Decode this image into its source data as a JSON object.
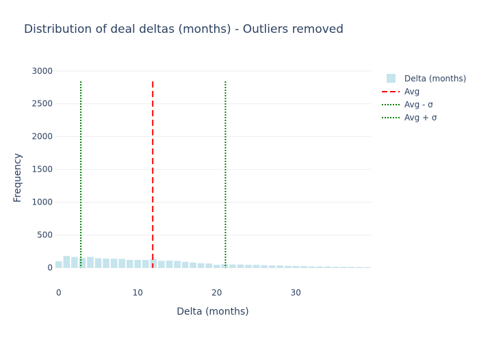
{
  "chart_data": {
    "type": "bar",
    "title": "Distribution of deal deltas (months) - Outliers removed",
    "xlabel": "Delta (months)",
    "ylabel": "Frequency",
    "xlim": [
      -0.5,
      39.5
    ],
    "ylim": [
      -120,
      3060
    ],
    "x_ticks": [
      "0",
      "10",
      "20",
      "30"
    ],
    "x_tick_values": [
      0,
      10,
      20,
      30
    ],
    "y_ticks": [
      "0",
      "500",
      "1000",
      "1500",
      "2000",
      "2500",
      "3000"
    ],
    "y_tick_values": [
      0,
      500,
      1000,
      1500,
      2000,
      2500,
      3000
    ],
    "grid": true,
    "legend_position": "top-right",
    "bar_color": "#add8e6",
    "series": [
      {
        "name": "Delta (months)",
        "x": [
          0,
          1,
          2,
          3,
          4,
          5,
          6,
          7,
          8,
          9,
          10,
          11,
          12,
          13,
          14,
          15,
          16,
          17,
          18,
          19,
          20,
          21,
          22,
          23,
          24,
          25,
          26,
          27,
          28,
          29,
          30,
          31,
          32,
          33,
          34,
          35,
          36,
          37,
          38,
          39
        ],
        "values": [
          100,
          180,
          165,
          150,
          165,
          145,
          140,
          138,
          135,
          120,
          120,
          120,
          130,
          105,
          110,
          105,
          90,
          80,
          70,
          65,
          45,
          55,
          50,
          50,
          45,
          45,
          40,
          35,
          35,
          30,
          28,
          25,
          20,
          20,
          20,
          15,
          15,
          15,
          12,
          10
        ]
      }
    ],
    "lines": [
      {
        "name": "Avg",
        "x": 11.9,
        "color": "#ff0000",
        "dash": "dash"
      },
      {
        "name": "Avg - σ",
        "x": 2.8,
        "color": "#008000",
        "dash": "dot"
      },
      {
        "name": "Avg + σ",
        "x": 21.1,
        "color": "#008000",
        "dash": "dot"
      }
    ]
  }
}
